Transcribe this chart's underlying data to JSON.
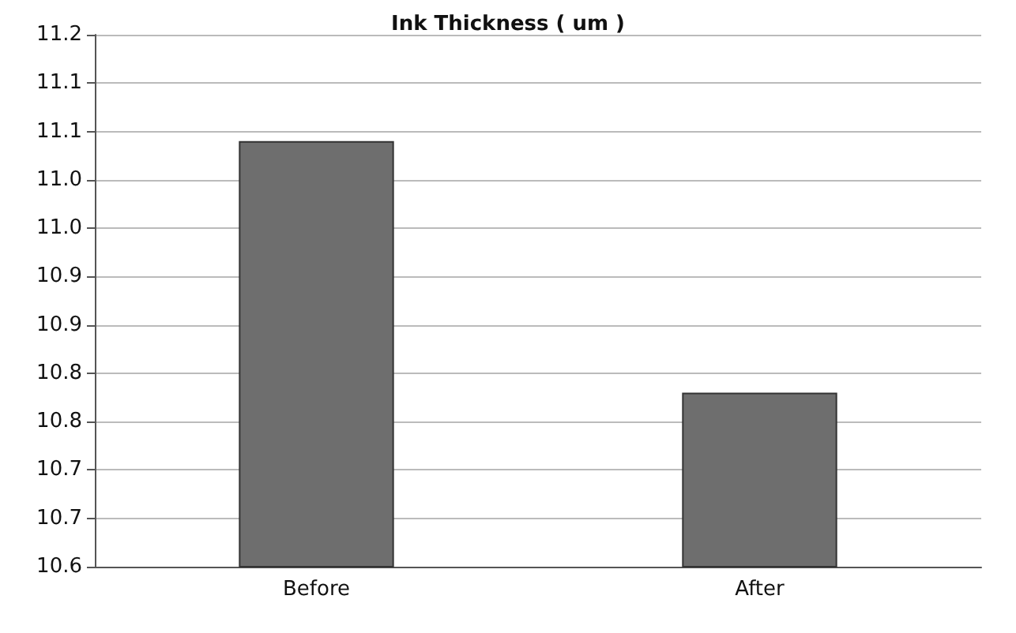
{
  "chart_data": {
    "type": "bar",
    "title": "Ink Thickness ( um )",
    "categories": [
      "Before",
      "After"
    ],
    "values": [
      11.04,
      10.78
    ],
    "color": "#6e6e6e",
    "ylim": [
      10.6,
      11.15
    ],
    "yticks": [
      {
        "value": 10.6,
        "label": "10.6"
      },
      {
        "value": 10.65,
        "label": "10.7"
      },
      {
        "value": 10.7,
        "label": "10.7"
      },
      {
        "value": 10.75,
        "label": "10.8"
      },
      {
        "value": 10.8,
        "label": "10.8"
      },
      {
        "value": 10.85,
        "label": "10.9"
      },
      {
        "value": 10.9,
        "label": "10.9"
      },
      {
        "value": 10.95,
        "label": "11.0"
      },
      {
        "value": 11.0,
        "label": "11.0"
      },
      {
        "value": 11.05,
        "label": "11.1"
      },
      {
        "value": 11.1,
        "label": "11.1"
      },
      {
        "value": 11.15,
        "label": "11.2"
      }
    ],
    "grid": "y"
  }
}
